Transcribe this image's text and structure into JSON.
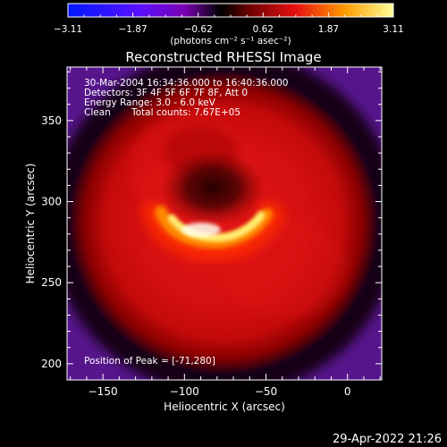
{
  "chart_data": {
    "type": "heatmap",
    "title": "Reconstructed RHESSI Image",
    "xlabel": "Heliocentric X (arcsec)",
    "ylabel": "Heliocentric Y (arcsec)",
    "xlim": [
      -172,
      21
    ],
    "ylim": [
      190,
      383
    ],
    "x_ticks": [
      -150,
      -100,
      -50,
      0
    ],
    "x_tick_labels": [
      "−150",
      "−100",
      "−50",
      "0"
    ],
    "y_ticks": [
      200,
      250,
      300,
      350
    ],
    "y_tick_labels": [
      "200",
      "250",
      "300",
      "350"
    ],
    "annotations": [
      "30-Mar-2004 16:34:36.000 to 16:40:36.000",
      "Detectors: 3F 4F 5F 6F 7F 8F, Att 0",
      "Energy Range: 3.0 - 6.0 keV",
      "Clean",
      "Total counts: 7.67E+05",
      "Position of Peak = [-71,280]"
    ],
    "peak": {
      "x": -71,
      "y": 280
    },
    "colorbar": {
      "min": -3.11,
      "max": 3.11,
      "tick_values": [
        -3.11,
        -1.87,
        -0.62,
        0.62,
        1.87,
        3.11
      ],
      "tick_labels": [
        "−3.11",
        "−1.87",
        "−0.62",
        "0.62",
        "1.87",
        "3.11"
      ],
      "label": "(photons cm⁻² s⁻¹ asec⁻²)"
    },
    "colors": [
      "#0000ff",
      "#5a00ff",
      "#000000",
      "#ff0000",
      "#ffa000",
      "#ffffff"
    ]
  },
  "footer": {
    "timestamp": "29-Apr-2022 21:26"
  }
}
